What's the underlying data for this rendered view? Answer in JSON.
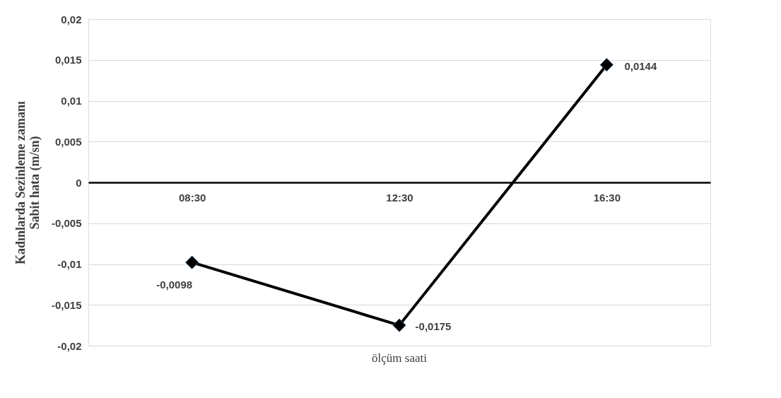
{
  "chart_data": {
    "type": "line",
    "ylabel": "Kadınlarda Sezinleme zamanı Sabit hata (m/sn)",
    "xlabel": "ölçüm saati",
    "categories": [
      "08:30",
      "12:30",
      "16:30"
    ],
    "series": [
      {
        "color": "#000000",
        "values": [
          -0.0098,
          -0.0175,
          0.0144
        ],
        "value_labels": [
          "-0,0098",
          "-0,0175",
          "0,0144"
        ]
      }
    ],
    "ylim": [
      -0.02,
      0.02
    ],
    "yticks": [
      {
        "value": -0.02,
        "label": "-0,02"
      },
      {
        "value": -0.015,
        "label": "-0,015"
      },
      {
        "value": -0.01,
        "label": "-0,01"
      },
      {
        "value": -0.005,
        "label": "-0,005"
      },
      {
        "value": 0,
        "label": "0"
      },
      {
        "value": 0.005,
        "label": "0,005"
      },
      {
        "value": 0.01,
        "label": "0,01"
      },
      {
        "value": 0.015,
        "label": "0,015"
      },
      {
        "value": 0.02,
        "label": "0,02"
      }
    ],
    "grid": "y",
    "marker": "diamond",
    "line_style": "solid"
  }
}
